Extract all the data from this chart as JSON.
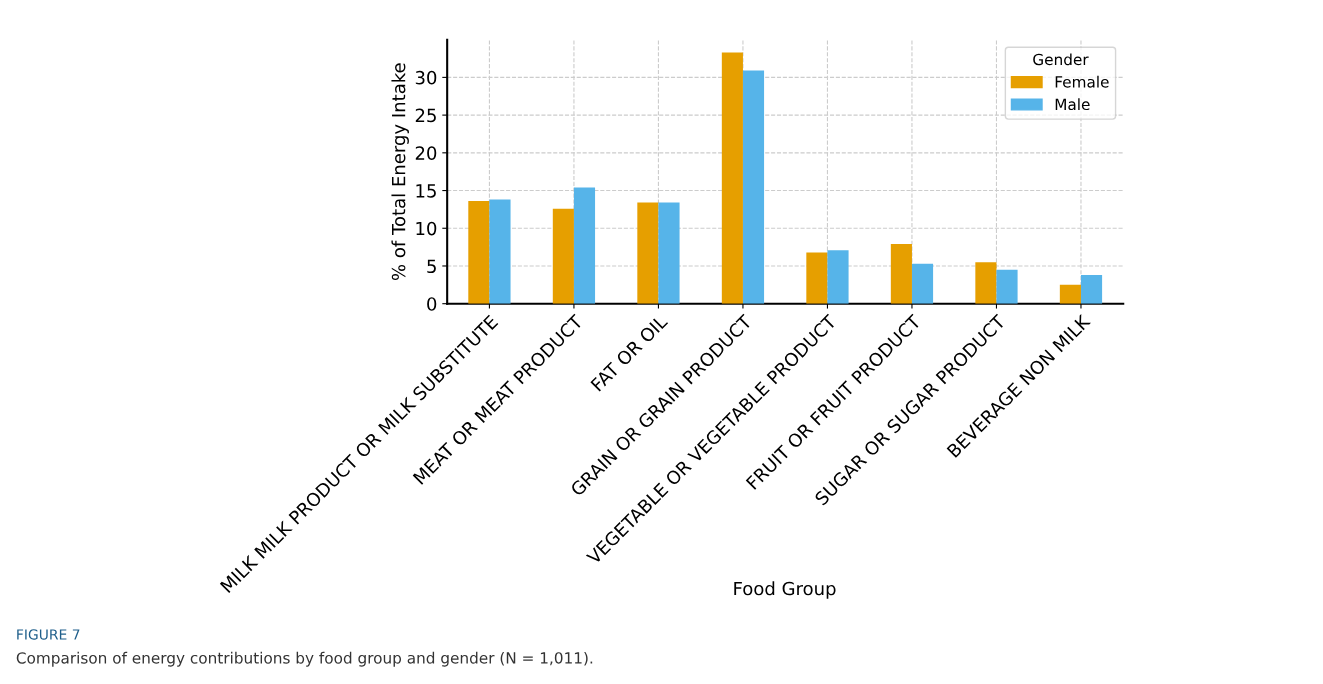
{
  "chart_data": {
    "type": "bar",
    "xlabel": "Food Group",
    "ylabel": "% of Total Energy Intake",
    "legend_title": "Gender",
    "categories": [
      "MILK MILK PRODUCT OR MILK SUBSTITUTE",
      "MEAT OR MEAT PRODUCT",
      "FAT OR OIL",
      "GRAIN OR GRAIN PRODUCT",
      "VEGETABLE OR VEGETABLE PRODUCT",
      "FRUIT OR FRUIT PRODUCT",
      "SUGAR OR SUGAR PRODUCT",
      "BEVERAGE NON MILK"
    ],
    "series": [
      {
        "name": "Female",
        "color": "#e69f00",
        "values": [
          13.6,
          12.6,
          13.4,
          33.3,
          6.8,
          7.9,
          5.5,
          2.5
        ]
      },
      {
        "name": "Male",
        "color": "#56b4e9",
        "values": [
          13.8,
          15.4,
          13.4,
          30.9,
          7.1,
          5.3,
          4.5,
          3.8
        ]
      }
    ],
    "ylim": [
      0,
      35
    ],
    "yticks": [
      0,
      5,
      10,
      15,
      20,
      25,
      30
    ],
    "grid": true,
    "legend": "top right",
    "annotations": [
      "FIGURE 7",
      "Comparison of energy contributions by food group and gender (N = 1,011)."
    ]
  }
}
